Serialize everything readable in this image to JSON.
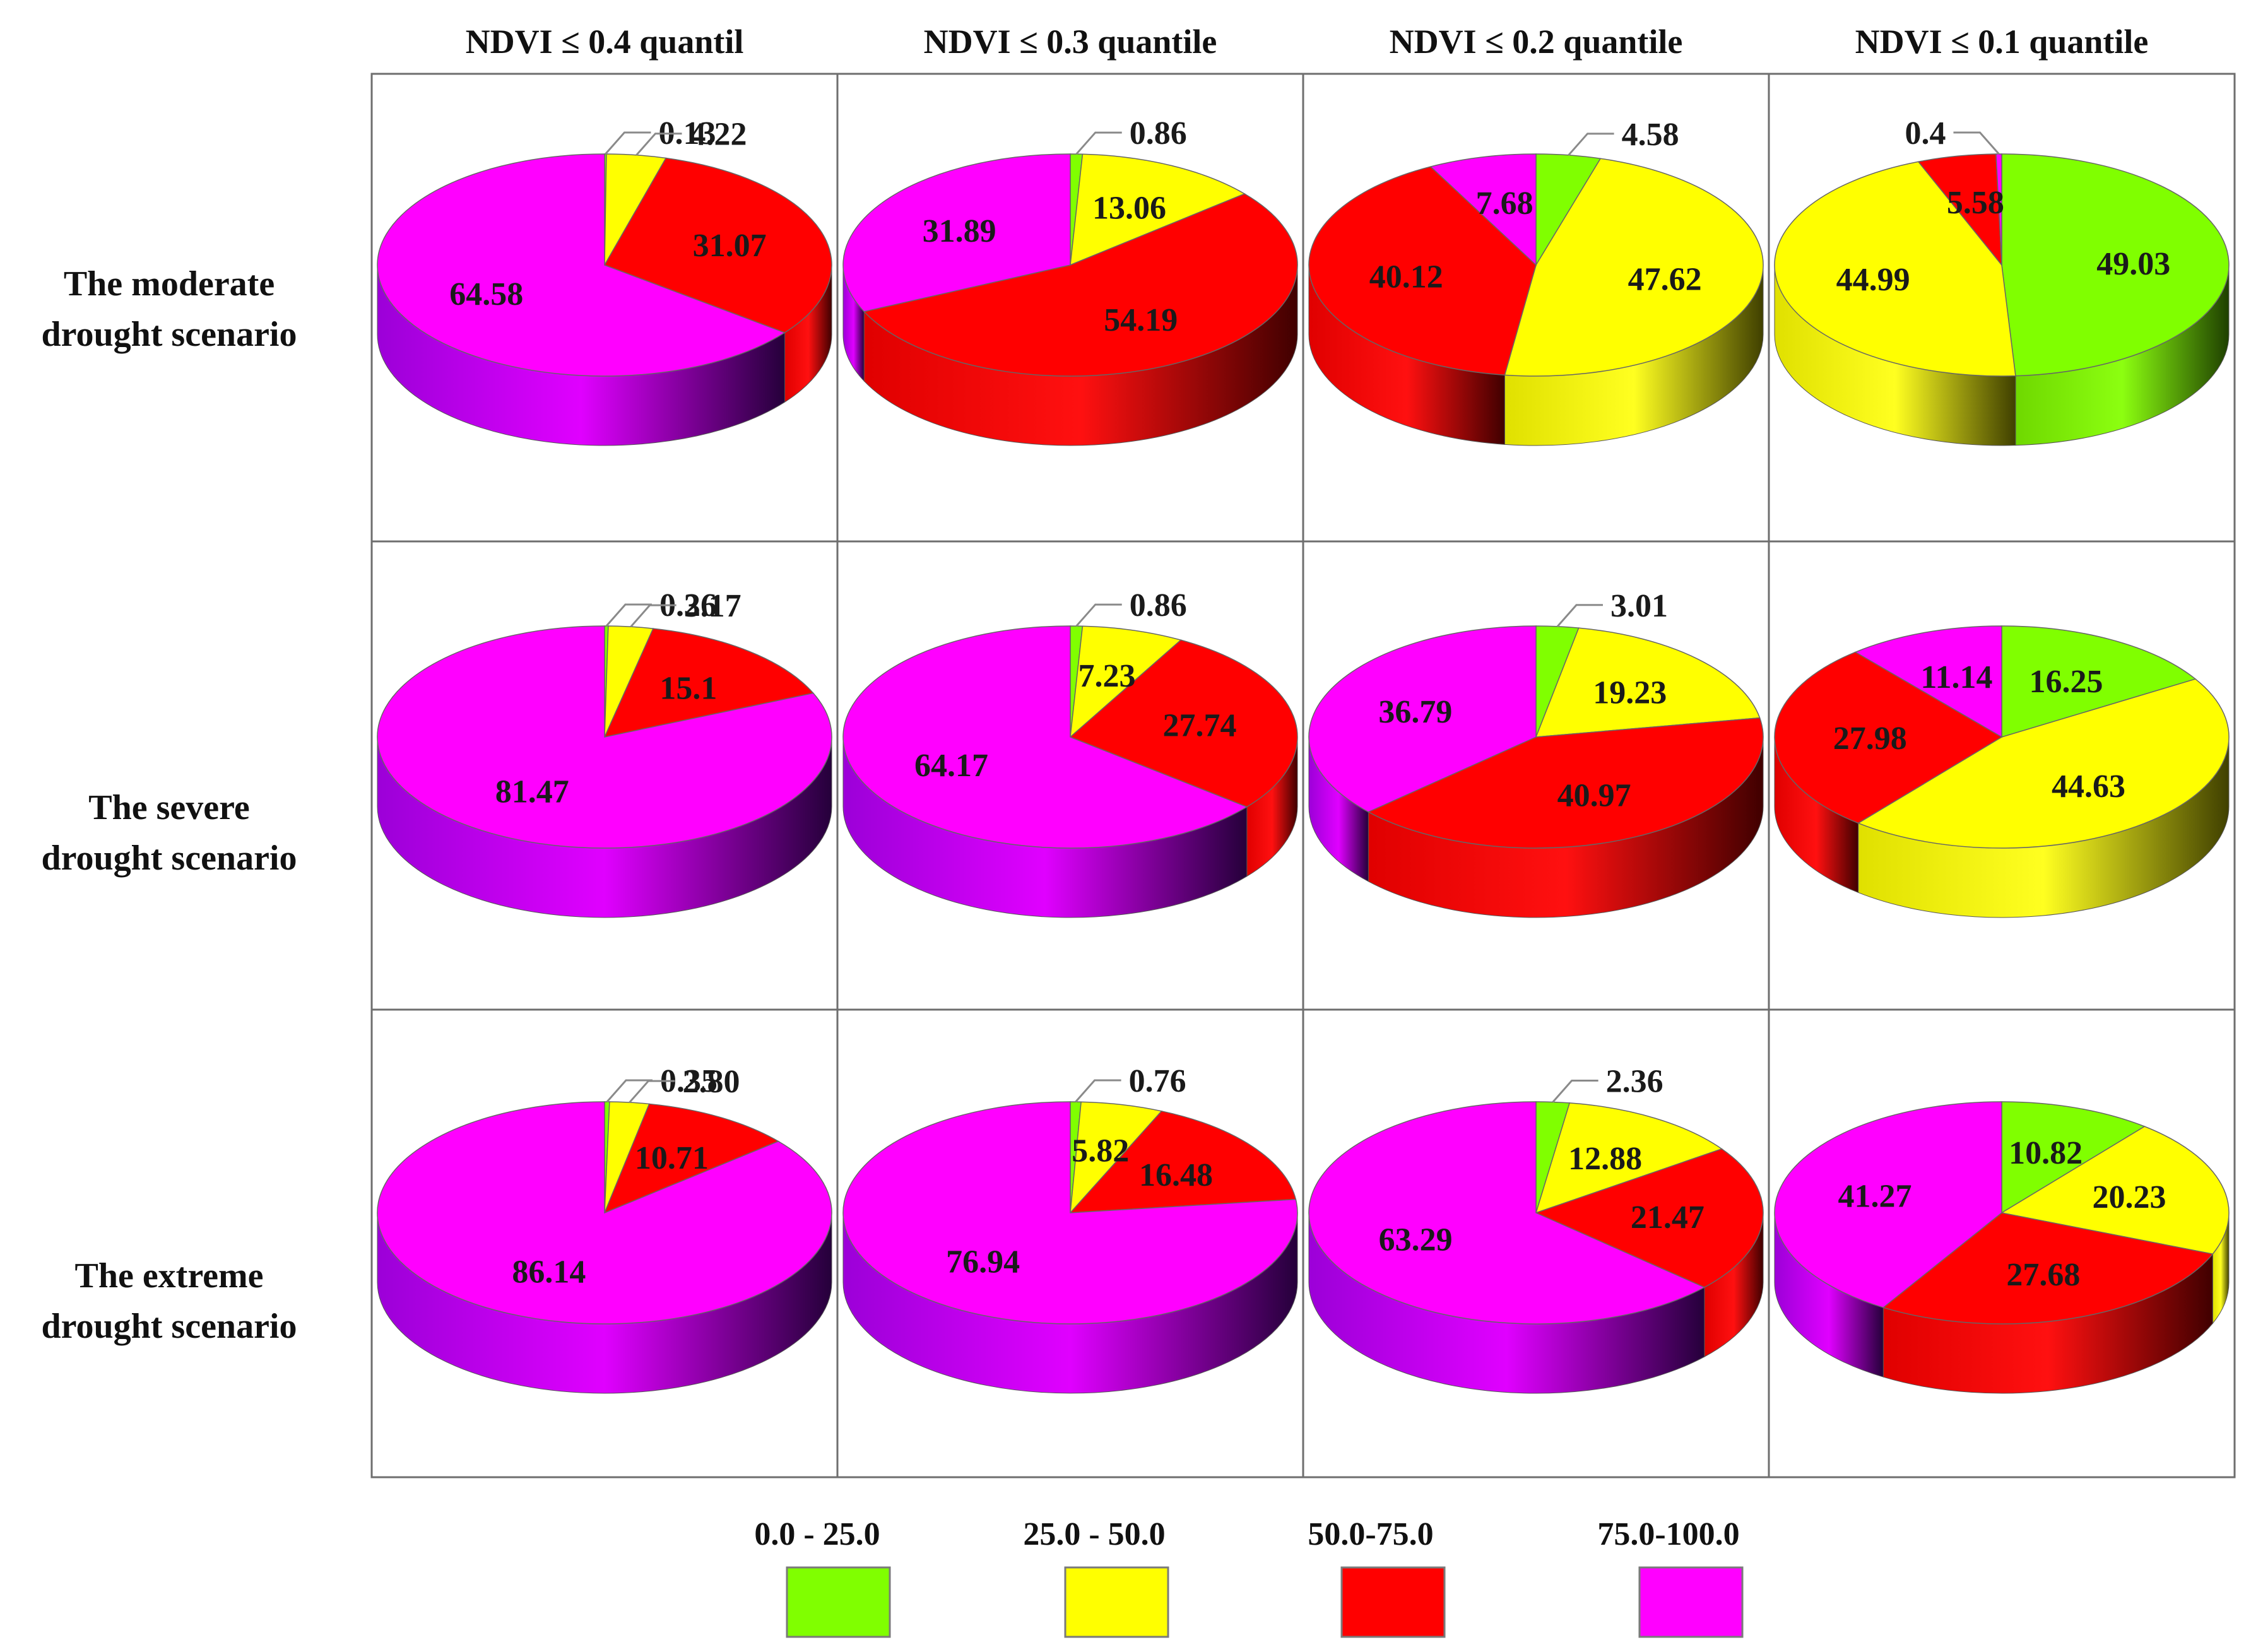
{
  "chart_data": {
    "type": "pie",
    "title": "",
    "column_titles": [
      "NDVI ≤ 0.4 quantil",
      "NDVI ≤ 0.3 quantile",
      "NDVI ≤ 0.2 quantile",
      "NDVI ≤ 0.1 quantile"
    ],
    "row_titles": [
      [
        "The moderate",
        "drought scenario"
      ],
      [
        "The severe",
        "drought scenario"
      ],
      [
        "The extreme",
        "drought scenario"
      ]
    ],
    "legend": [
      {
        "label": "0.0 - 25.0",
        "color": "#80ff00"
      },
      {
        "label": "25.0 - 50.0",
        "color": "#ffff00"
      },
      {
        "label": "50.0-75.0",
        "color": "#ff0000"
      },
      {
        "label": "75.0-100.0",
        "color": "#ff00ff"
      }
    ],
    "pies": [
      [
        {
          "values": [
            0.13,
            4.22,
            31.07,
            64.58
          ],
          "labels": [
            "0.13",
            "4.22",
            "31.07",
            "64.58"
          ]
        },
        {
          "values": [
            0.86,
            13.06,
            54.19,
            31.89
          ],
          "labels": [
            "0.86",
            "13.06",
            "54.19",
            "31.89"
          ]
        },
        {
          "values": [
            4.58,
            47.62,
            40.12,
            7.68
          ],
          "labels": [
            "4.58",
            "47.62",
            "40.12",
            "7.68"
          ]
        },
        {
          "values": [
            49.03,
            44.99,
            5.58,
            0.4
          ],
          "labels": [
            "49.03",
            "44.99",
            "5.58",
            "0.4"
          ]
        }
      ],
      [
        {
          "values": [
            0.26,
            3.17,
            15.1,
            81.47
          ],
          "labels": [
            "0.26",
            "3.17",
            "15.1",
            "81.47"
          ]
        },
        {
          "values": [
            0.86,
            7.23,
            27.74,
            64.17
          ],
          "labels": [
            "0.86",
            "7.23",
            "27.74",
            "64.17"
          ]
        },
        {
          "values": [
            3.01,
            19.23,
            40.97,
            36.79
          ],
          "labels": [
            "3.01",
            "19.23",
            "40.97",
            "36.79"
          ]
        },
        {
          "values": [
            16.25,
            44.63,
            27.98,
            11.14
          ],
          "labels": [
            "16.25",
            "44.63",
            "27.98",
            "11.14"
          ]
        }
      ],
      [
        {
          "values": [
            0.35,
            2.8,
            10.71,
            86.14
          ],
          "labels": [
            "0.35",
            "2.80",
            "10.71",
            "86.14"
          ]
        },
        {
          "values": [
            0.76,
            5.82,
            16.48,
            76.94
          ],
          "labels": [
            "0.76",
            "5.82",
            "16.48",
            "76.94"
          ]
        },
        {
          "values": [
            2.36,
            12.88,
            21.47,
            63.29
          ],
          "labels": [
            "2.36",
            "12.88",
            "21.47",
            "63.29"
          ]
        },
        {
          "values": [
            10.82,
            20.23,
            27.68,
            41.27
          ],
          "labels": [
            "10.82",
            "20.23",
            "27.68",
            "41.27"
          ]
        }
      ]
    ]
  }
}
